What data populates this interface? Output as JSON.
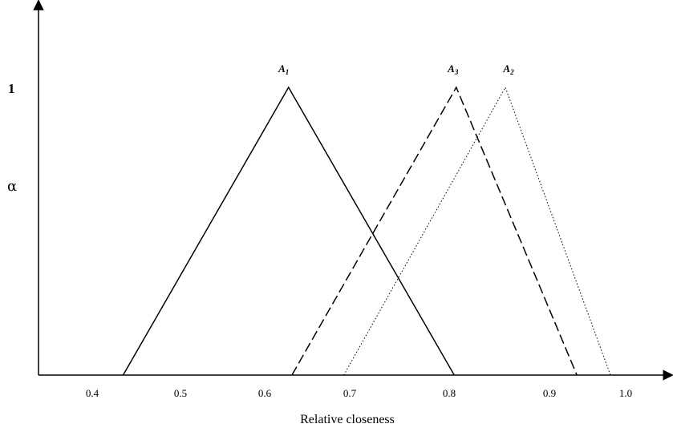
{
  "chart_data": {
    "type": "line",
    "title": "",
    "xlabel": "Relative closeness",
    "ylabel": "α",
    "y_top_label": "1",
    "x_ticks": [
      {
        "value": 0.4,
        "label": "0.4"
      },
      {
        "value": 0.5,
        "label": "0.5"
      },
      {
        "value": 0.6,
        "label": "0.6"
      },
      {
        "value": 0.7,
        "label": "0.7"
      },
      {
        "value": 0.8,
        "label": "0.8"
      },
      {
        "value": 0.9,
        "label": "0.9"
      },
      {
        "value": 1.0,
        "label": "1.0"
      }
    ],
    "series": [
      {
        "name": "A",
        "sub": "1",
        "style": "solid",
        "x": [
          0.435,
          0.628,
          0.805
        ],
        "y": [
          0,
          1,
          0
        ]
      },
      {
        "name": "A",
        "sub": "3",
        "style": "dashed",
        "x": [
          0.632,
          0.807,
          0.936
        ],
        "y": [
          0,
          1,
          0
        ]
      },
      {
        "name": "A",
        "sub": "2",
        "style": "dotted",
        "x": [
          0.693,
          0.856,
          0.98
        ],
        "y": [
          0,
          1,
          0
        ]
      }
    ],
    "grid": false,
    "legend": "labels at peaks"
  }
}
